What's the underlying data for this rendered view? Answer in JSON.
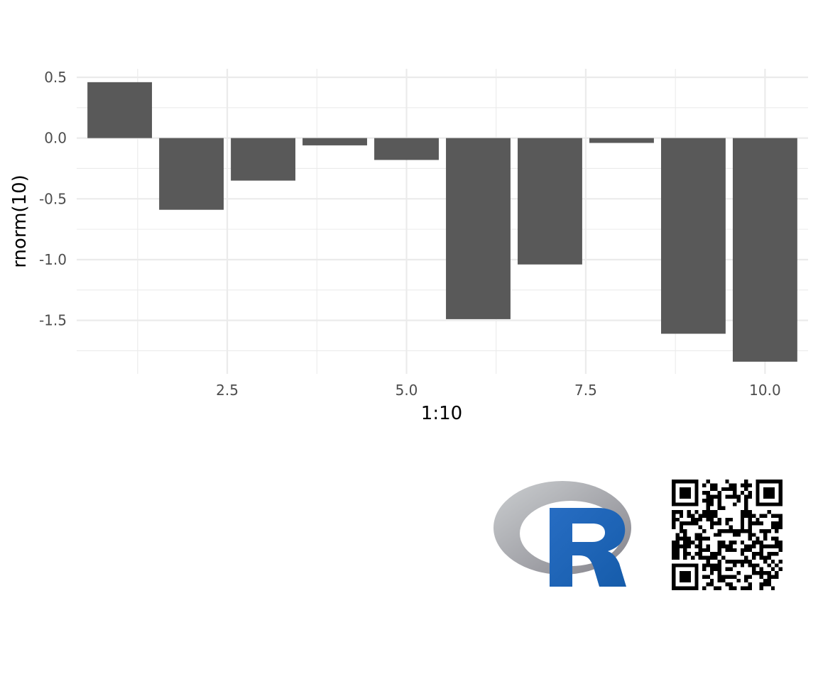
{
  "chart_data": {
    "type": "bar",
    "x": [
      1,
      2,
      3,
      4,
      5,
      6,
      7,
      8,
      9,
      10
    ],
    "values": [
      0.46,
      -0.59,
      -0.35,
      -0.06,
      -0.18,
      -1.49,
      -1.04,
      -0.04,
      -1.61,
      -1.84
    ],
    "xlabel": "1:10",
    "ylabel": "rnorm(10)",
    "xlim": [
      0.4,
      10.6
    ],
    "ylim": [
      -1.94,
      0.57
    ],
    "x_ticks": [
      2.5,
      5.0,
      7.5,
      10.0
    ],
    "x_tick_labels": [
      "2.5",
      "5.0",
      "7.5",
      "10.0"
    ],
    "y_ticks": [
      0.5,
      0.0,
      -0.5,
      -1.0,
      -1.5
    ],
    "y_tick_labels": [
      "0.5",
      "0.0",
      "-0.5",
      "-1.0",
      "-1.5"
    ],
    "bar_color": "#595959",
    "grid": true,
    "grid_color": "#ebebeb",
    "theme": "minimal",
    "legend": "none"
  },
  "logos": {
    "r_logo": "r-logo",
    "qr_code": "qr-code"
  },
  "colors": {
    "r_blue": "#1f65b7",
    "r_gray": "#a5a7ab"
  }
}
